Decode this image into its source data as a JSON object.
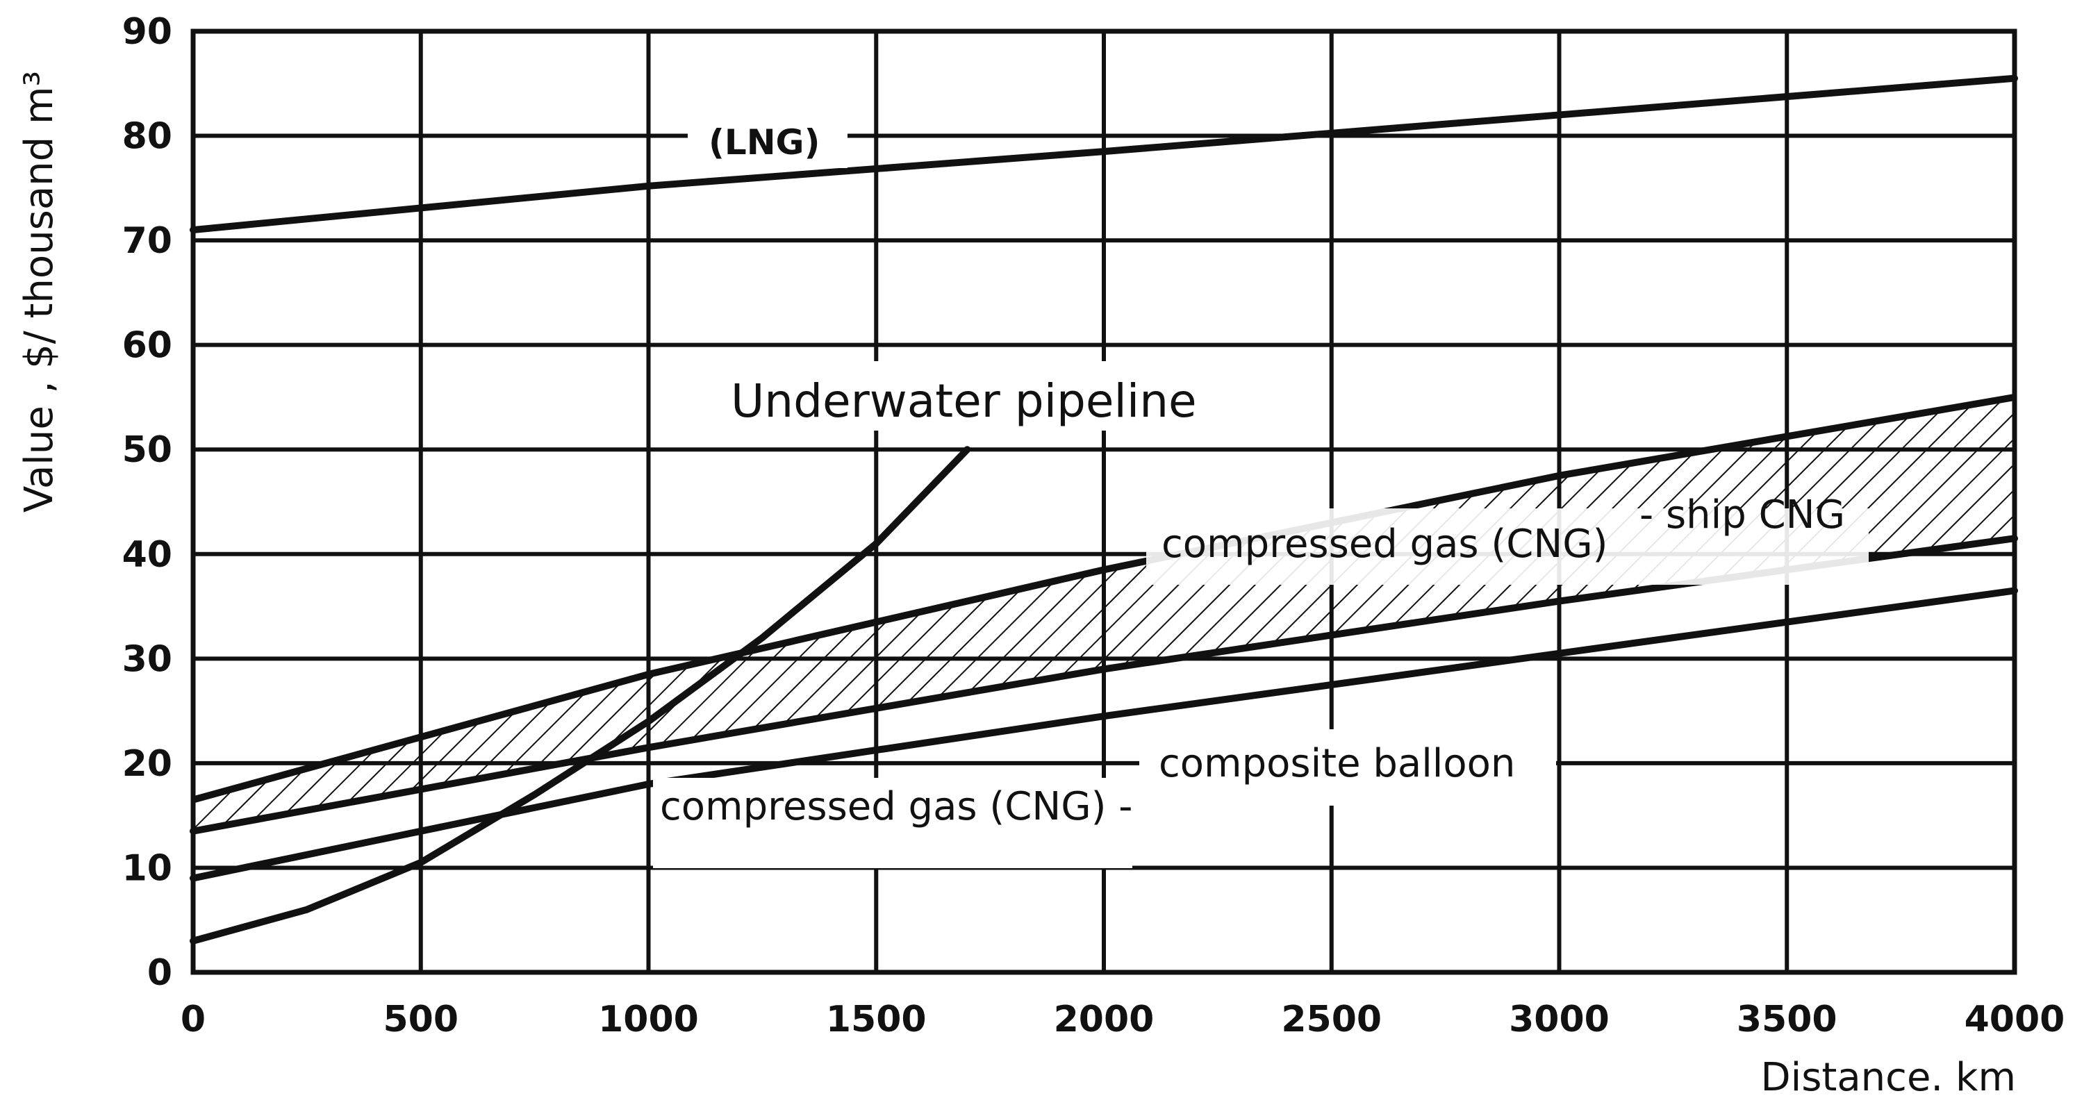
{
  "chart_data": {
    "type": "line",
    "xlabel": "Distance. km",
    "ylabel": "Value , $/ thousand m³",
    "xlim": [
      0,
      4000
    ],
    "ylim": [
      0,
      90
    ],
    "xticks": [
      "0",
      "500",
      "1000",
      "1500",
      "2000",
      "2500",
      "3000",
      "3500",
      "4000"
    ],
    "yticks": [
      "0",
      "10",
      "20",
      "30",
      "40",
      "50",
      "60",
      "70",
      "80",
      "90"
    ],
    "grid": true,
    "series": [
      {
        "name": "(LNG)",
        "x": [
          0,
          1000,
          2000,
          3000,
          4000
        ],
        "y": [
          71,
          75.2,
          78.5,
          82,
          85.5
        ]
      },
      {
        "name": "Underwater pipeline",
        "x": [
          0,
          250,
          500,
          750,
          1000,
          1250,
          1500,
          1700
        ],
        "y": [
          3,
          6,
          10.5,
          17,
          24,
          32,
          41,
          50
        ]
      },
      {
        "name": "compressed gas (CNG) - ship CNG",
        "x": [
          0,
          1000,
          2000,
          3000,
          4000
        ],
        "y": [
          13.5,
          21.5,
          29,
          35.5,
          41.5
        ]
      },
      {
        "name": "compressed gas (CNG) - composite balloon",
        "x": [
          0,
          1000,
          2000,
          3000,
          4000
        ],
        "y": [
          9,
          18,
          24.5,
          30.5,
          36.5
        ]
      }
    ],
    "bands": [
      {
        "label": "compressed gas (CNG) - ship CNG",
        "x": [
          0,
          1000,
          2000,
          3000,
          4000
        ],
        "lower": [
          13.5,
          21.5,
          29,
          35.5,
          41.5
        ],
        "upper": [
          16.5,
          28.5,
          38.5,
          47.5,
          55
        ]
      }
    ],
    "annotations": {
      "lng": "(LNG)",
      "pipeline": "Underwater pipeline",
      "cng_ship_a": "compressed gas (CNG)",
      "cng_ship_b": "- ship CNG",
      "cng_balloon_a": "compressed gas (CNG) -",
      "cng_balloon_b": "composite balloon"
    }
  }
}
